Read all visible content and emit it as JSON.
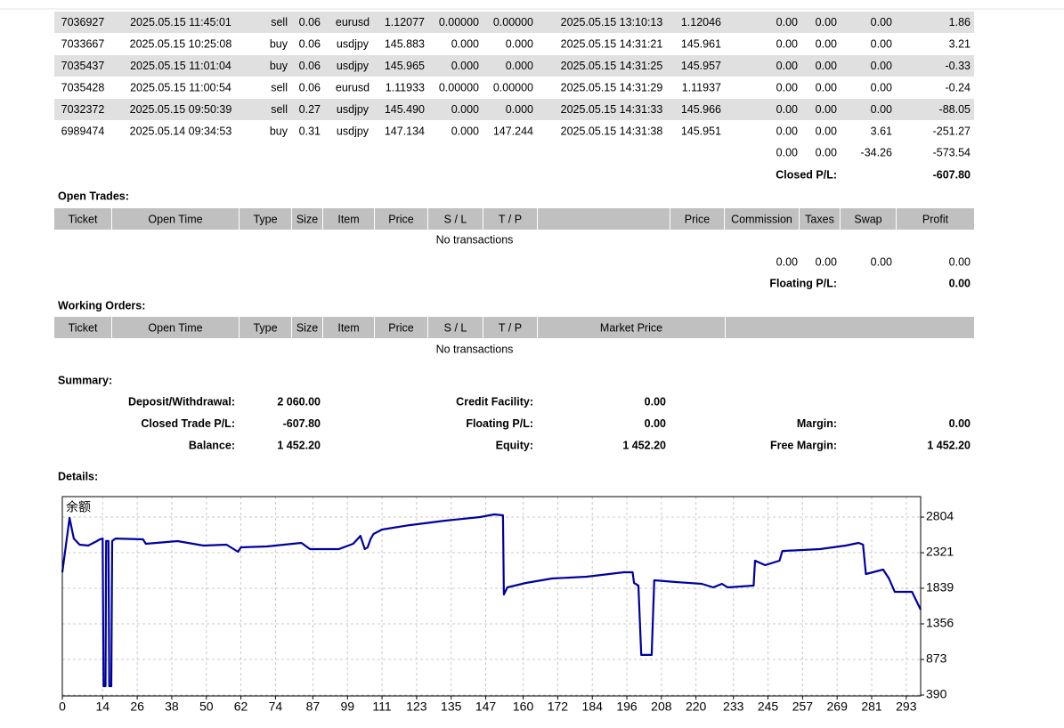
{
  "closed_trades": {
    "rows": [
      [
        "7036927",
        "2025.05.15 11:45:01",
        "sell",
        "0.06",
        "eurusd",
        "1.12077",
        "0.00000",
        "0.00000",
        "2025.05.15 13:10:13",
        "1.12046",
        "0.00",
        "0.00",
        "0.00",
        "1.86"
      ],
      [
        "7033667",
        "2025.05.15 10:25:08",
        "buy",
        "0.06",
        "usdjpy",
        "145.883",
        "0.000",
        "0.000",
        "2025.05.15 14:31:21",
        "145.961",
        "0.00",
        "0.00",
        "0.00",
        "3.21"
      ],
      [
        "7035437",
        "2025.05.15 11:01:04",
        "buy",
        "0.06",
        "usdjpy",
        "145.965",
        "0.000",
        "0.000",
        "2025.05.15 14:31:25",
        "145.957",
        "0.00",
        "0.00",
        "0.00",
        "-0.33"
      ],
      [
        "7035428",
        "2025.05.15 11:00:54",
        "sell",
        "0.06",
        "eurusd",
        "1.11933",
        "0.00000",
        "0.00000",
        "2025.05.15 14:31:29",
        "1.11937",
        "0.00",
        "0.00",
        "0.00",
        "-0.24"
      ],
      [
        "7032372",
        "2025.05.15 09:50:39",
        "sell",
        "0.27",
        "usdjpy",
        "145.490",
        "0.000",
        "0.000",
        "2025.05.15 14:31:33",
        "145.966",
        "0.00",
        "0.00",
        "0.00",
        "-88.05"
      ],
      [
        "6989474",
        "2025.05.14 09:34:53",
        "buy",
        "0.31",
        "usdjpy",
        "147.134",
        "0.000",
        "147.244",
        "2025.05.15 14:31:38",
        "145.951",
        "0.00",
        "0.00",
        "3.61",
        "-251.27"
      ]
    ],
    "totals": [
      "0.00",
      "0.00",
      "-34.26",
      "-573.54"
    ],
    "pl_label": "Closed P/L:",
    "pl_value": "-607.80"
  },
  "open_trades": {
    "title": "Open Trades:",
    "headers": [
      "Ticket",
      "Open Time",
      "Type",
      "Size",
      "Item",
      "Price",
      "S / L",
      "T / P",
      null,
      "Price",
      "Commission",
      "Taxes",
      "Swap",
      "Profit"
    ],
    "empty": "No transactions",
    "totals": [
      "0.00",
      "0.00",
      "0.00",
      "0.00"
    ],
    "pl_label": "Floating P/L:",
    "pl_value": "0.00"
  },
  "working_orders": {
    "title": "Working Orders:",
    "headers": [
      "Ticket",
      "Open Time",
      "Type",
      "Size",
      "Item",
      "Price",
      "S / L",
      "T / P",
      "Market Price",
      null
    ],
    "empty": "No transactions"
  },
  "summary": {
    "title": "Summary:",
    "rows": [
      [
        "Deposit/Withdrawal:",
        "2 060.00",
        "Credit Facility:",
        "0.00"
      ],
      [
        "Closed Trade P/L:",
        "-607.80",
        "Floating P/L:",
        "0.00",
        "Margin:",
        "0.00"
      ],
      [
        "Balance:",
        "1 452.20",
        "Equity:",
        "1 452.20",
        "Free Margin:",
        "1 452.20"
      ]
    ]
  },
  "details_title": "Details:",
  "chart_data": {
    "type": "line",
    "series": [
      {
        "name": "余额",
        "color": "#0000a0",
        "x": [
          0,
          2.5,
          4,
          6,
          9,
          12,
          13,
          14,
          14.3,
          15,
          15.2,
          16,
          16.3,
          17,
          17.3,
          18.5,
          28,
          29,
          40,
          49,
          57,
          61,
          62,
          71,
          77,
          83,
          86,
          96,
          101,
          103.5,
          105,
          106,
          107,
          108,
          111,
          120.5,
          133,
          145,
          150,
          153,
          153.3,
          154.5,
          161,
          170,
          182,
          195,
          198,
          198.5,
          200,
          201,
          204.6,
          205.5,
          213,
          222,
          226,
          229,
          231,
          240,
          240.5,
          244,
          249,
          250,
          263,
          272,
          276.5,
          278,
          279,
          285,
          287,
          289,
          295,
          298
        ],
        "values": [
          2056,
          2792,
          2514,
          2430,
          2418,
          2478,
          2502,
          2514,
          511,
          511,
          2480,
          2480,
          511,
          511,
          2480,
          2514,
          2502,
          2442,
          2478,
          2418,
          2430,
          2333,
          2394,
          2406,
          2430,
          2454,
          2370,
          2370,
          2442,
          2550,
          2370,
          2394,
          2502,
          2575,
          2635,
          2695,
          2756,
          2804,
          2840,
          2828,
          1754,
          1851,
          1911,
          1971,
          1995,
          2056,
          2056,
          1911,
          1875,
          934,
          934,
          1947,
          1923,
          1899,
          1851,
          1899,
          1851,
          1875,
          2213,
          2152,
          2213,
          2345,
          2370,
          2418,
          2454,
          2430,
          2032,
          2092,
          1971,
          1790,
          1790,
          1549
        ]
      }
    ],
    "xlim": [
      0,
      298
    ],
    "xticks": [
      0,
      14,
      26,
      38,
      50,
      62,
      74,
      87,
      99,
      111,
      123,
      135,
      147,
      160,
      172,
      184,
      196,
      208,
      220,
      233,
      245,
      257,
      269,
      281,
      293
    ],
    "ylim": [
      378,
      3082
    ],
    "yticks": [
      390,
      873,
      1356,
      1839,
      2321,
      2804
    ],
    "grid": true
  }
}
